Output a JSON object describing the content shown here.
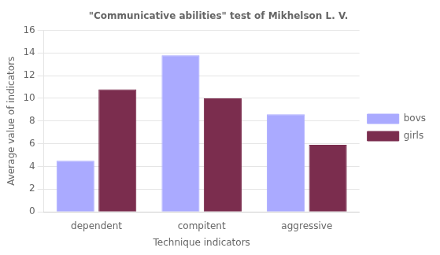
{
  "chart_data": {
    "type": "bar",
    "title": "\"Communicative abilities\" test of Mikhelson L. V.",
    "xlabel": "Technique indicators",
    "ylabel": "Average value of indicators",
    "categories": [
      "dependent",
      "compitent",
      "aggressive"
    ],
    "series": [
      {
        "name": "bovs",
        "color": "#aaaaff",
        "values": [
          4.5,
          13.8,
          8.6
        ]
      },
      {
        "name": "girls",
        "color": "#7b2d4e",
        "values": [
          10.8,
          10.0,
          5.9
        ]
      }
    ],
    "ylim": [
      0,
      16
    ],
    "yticks": [
      0,
      2,
      4,
      6,
      8,
      10,
      12,
      14,
      16
    ],
    "grid": true,
    "legend": "right"
  }
}
